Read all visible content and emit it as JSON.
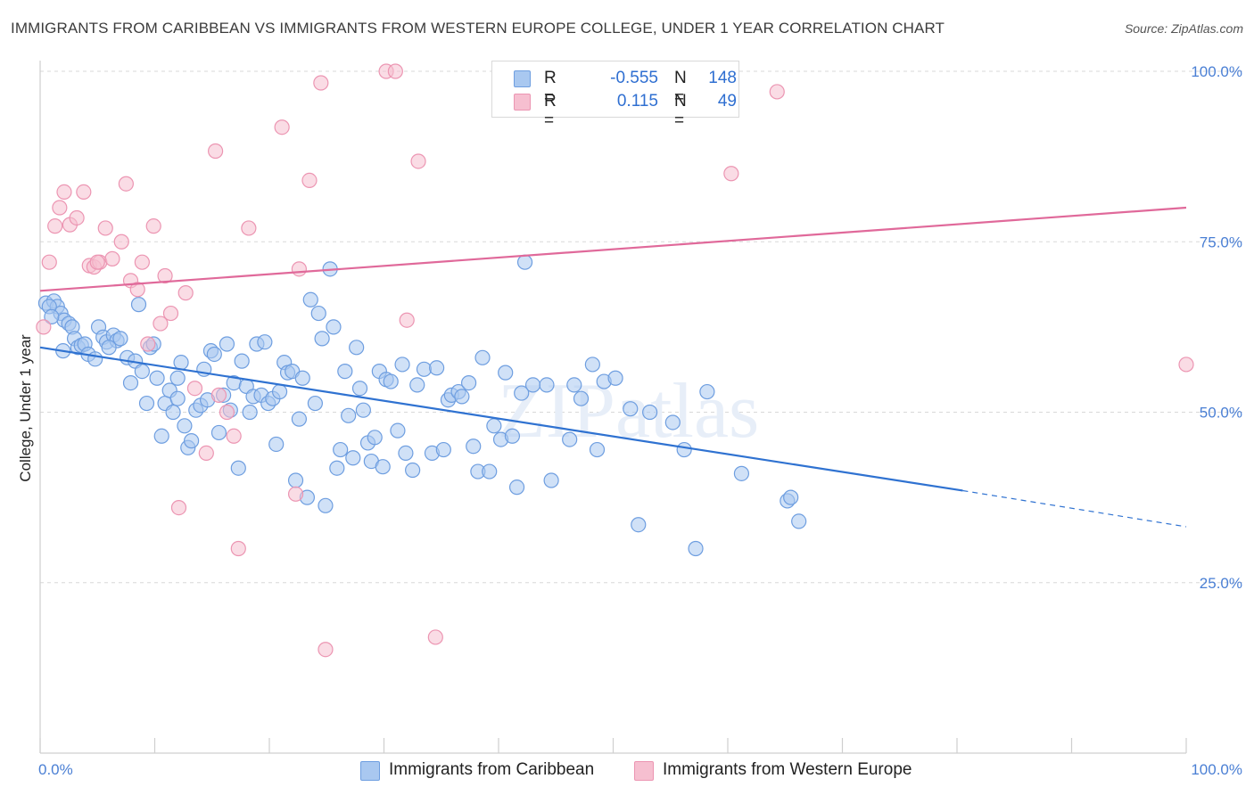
{
  "title": "IMMIGRANTS FROM CARIBBEAN VS IMMIGRANTS FROM WESTERN EUROPE COLLEGE, UNDER 1 YEAR CORRELATION CHART",
  "source": "Source: ZipAtlas.com",
  "watermark": "ZIPatlas",
  "legend": {
    "rows": [
      {
        "r_label": "R =",
        "r_value": "-0.555",
        "n_label": "N =",
        "n_value": "148"
      },
      {
        "r_label": "R =",
        "r_value": "0.115",
        "n_label": "N =",
        "n_value": "49"
      }
    ]
  },
  "bottom_legend": [
    "Immigrants from Caribbean",
    "Immigrants from Western Europe"
  ],
  "colors": {
    "caribbean_fill": "#a9c8f0",
    "caribbean_stroke": "#6e9ee0",
    "caribbean_line": "#2f72d1",
    "westeu_fill": "#f6bfd0",
    "westeu_stroke": "#ec95b2",
    "westeu_line": "#e0699a",
    "grid": "#d8d8d8",
    "tick_text": "#4a7fd4"
  },
  "chart_data": {
    "type": "scatter",
    "title": "IMMIGRANTS FROM CARIBBEAN VS IMMIGRANTS FROM WESTERN EUROPE COLLEGE, UNDER 1 YEAR CORRELATION CHART",
    "xlabel": "",
    "ylabel": "College, Under 1 year",
    "xlim": [
      0,
      100
    ],
    "ylim": [
      0,
      102
    ],
    "x_ticks": [
      "0.0%",
      "100.0%"
    ],
    "y_ticks": [
      {
        "value": 25,
        "label": "25.0%"
      },
      {
        "value": 50,
        "label": "50.0%"
      },
      {
        "value": 75,
        "label": "75.0%"
      },
      {
        "value": 100,
        "label": "100.0%"
      }
    ],
    "grid": "horizontal dashed",
    "series": [
      {
        "name": "Immigrants from Caribbean",
        "trend": {
          "x0": 0,
          "y0": 59.5,
          "x1": 80.5,
          "y1": 38.5,
          "dash_to_x": 100,
          "dash_to_y": 33.2
        },
        "points": [
          [
            0.5,
            66.0
          ],
          [
            1.2,
            66.3
          ],
          [
            1.5,
            65.5
          ],
          [
            1.8,
            64.5
          ],
          [
            2.1,
            63.5
          ],
          [
            2.5,
            63.0
          ],
          [
            2.8,
            62.5
          ],
          [
            3.0,
            60.8
          ],
          [
            3.3,
            59.5
          ],
          [
            3.6,
            59.8
          ],
          [
            3.9,
            60.0
          ],
          [
            4.2,
            58.5
          ],
          [
            4.8,
            57.8
          ],
          [
            5.1,
            62.5
          ],
          [
            5.5,
            61.0
          ],
          [
            5.8,
            60.3
          ],
          [
            6.4,
            61.3
          ],
          [
            6.7,
            60.5
          ],
          [
            7.0,
            60.8
          ],
          [
            7.6,
            58.0
          ],
          [
            7.9,
            54.3
          ],
          [
            8.3,
            57.5
          ],
          [
            8.6,
            65.8
          ],
          [
            8.9,
            56.0
          ],
          [
            9.3,
            51.3
          ],
          [
            9.6,
            59.5
          ],
          [
            9.9,
            60.0
          ],
          [
            10.2,
            55.0
          ],
          [
            10.6,
            46.5
          ],
          [
            10.9,
            51.3
          ],
          [
            11.3,
            53.2
          ],
          [
            11.6,
            50.0
          ],
          [
            12.0,
            55.0
          ],
          [
            12.3,
            57.3
          ],
          [
            12.6,
            48.0
          ],
          [
            12.9,
            44.8
          ],
          [
            13.2,
            45.8
          ],
          [
            13.6,
            50.3
          ],
          [
            14.0,
            51.0
          ],
          [
            14.3,
            56.3
          ],
          [
            14.6,
            51.8
          ],
          [
            14.9,
            59.0
          ],
          [
            15.2,
            58.5
          ],
          [
            15.6,
            47.0
          ],
          [
            16.0,
            52.5
          ],
          [
            16.3,
            60.0
          ],
          [
            16.6,
            50.3
          ],
          [
            16.9,
            54.3
          ],
          [
            17.3,
            41.8
          ],
          [
            17.6,
            57.5
          ],
          [
            18.0,
            53.8
          ],
          [
            18.3,
            50.0
          ],
          [
            18.6,
            52.3
          ],
          [
            18.9,
            60.0
          ],
          [
            19.3,
            52.5
          ],
          [
            19.6,
            60.3
          ],
          [
            19.9,
            51.3
          ],
          [
            20.3,
            52.0
          ],
          [
            20.6,
            45.3
          ],
          [
            20.9,
            53.0
          ],
          [
            21.3,
            57.3
          ],
          [
            21.6,
            55.8
          ],
          [
            22.0,
            56.0
          ],
          [
            22.3,
            40.0
          ],
          [
            22.6,
            49.0
          ],
          [
            22.9,
            55.0
          ],
          [
            23.3,
            37.5
          ],
          [
            23.6,
            66.5
          ],
          [
            24.0,
            51.3
          ],
          [
            24.3,
            64.5
          ],
          [
            24.6,
            60.8
          ],
          [
            24.9,
            36.3
          ],
          [
            25.3,
            71.0
          ],
          [
            25.6,
            62.5
          ],
          [
            25.9,
            41.8
          ],
          [
            26.2,
            44.5
          ],
          [
            26.6,
            56.0
          ],
          [
            26.9,
            49.5
          ],
          [
            27.3,
            43.3
          ],
          [
            27.6,
            59.5
          ],
          [
            27.9,
            53.5
          ],
          [
            28.2,
            50.3
          ],
          [
            28.6,
            45.5
          ],
          [
            28.9,
            42.8
          ],
          [
            29.2,
            46.3
          ],
          [
            29.6,
            56.0
          ],
          [
            29.9,
            42.0
          ],
          [
            30.2,
            54.8
          ],
          [
            30.6,
            54.5
          ],
          [
            31.2,
            47.3
          ],
          [
            31.6,
            57.0
          ],
          [
            31.9,
            44.0
          ],
          [
            32.5,
            41.5
          ],
          [
            32.9,
            54.0
          ],
          [
            33.5,
            56.3
          ],
          [
            34.2,
            44.0
          ],
          [
            34.6,
            56.5
          ],
          [
            35.2,
            44.5
          ],
          [
            35.6,
            51.8
          ],
          [
            35.9,
            52.5
          ],
          [
            36.5,
            53.0
          ],
          [
            36.8,
            52.3
          ],
          [
            37.4,
            54.3
          ],
          [
            37.8,
            45.0
          ],
          [
            38.2,
            41.3
          ],
          [
            38.6,
            58.0
          ],
          [
            39.2,
            41.3
          ],
          [
            39.6,
            48.0
          ],
          [
            40.2,
            46.0
          ],
          [
            40.6,
            55.8
          ],
          [
            41.2,
            46.5
          ],
          [
            41.6,
            39.0
          ],
          [
            42.0,
            52.8
          ],
          [
            42.3,
            72.0
          ],
          [
            43.0,
            54.0
          ],
          [
            44.2,
            54.0
          ],
          [
            44.6,
            40.0
          ],
          [
            46.2,
            46.0
          ],
          [
            46.6,
            54.0
          ],
          [
            47.2,
            52.0
          ],
          [
            48.2,
            57.0
          ],
          [
            48.6,
            44.5
          ],
          [
            49.2,
            54.5
          ],
          [
            50.2,
            55.0
          ],
          [
            51.5,
            50.5
          ],
          [
            52.2,
            33.5
          ],
          [
            53.2,
            50.0
          ],
          [
            55.2,
            48.5
          ],
          [
            56.2,
            44.5
          ],
          [
            57.2,
            30.0
          ],
          [
            58.2,
            53.0
          ],
          [
            61.2,
            41.0
          ],
          [
            65.2,
            37.0
          ],
          [
            65.5,
            37.5
          ],
          [
            66.2,
            34.0
          ],
          [
            0.8,
            65.5
          ],
          [
            1.0,
            64.0
          ],
          [
            2.0,
            59.0
          ],
          [
            6.0,
            59.5
          ],
          [
            12.0,
            52.0
          ]
        ]
      },
      {
        "name": "Immigrants from Western Europe",
        "trend": {
          "x0": 0,
          "y0": 67.8,
          "x1": 100,
          "y1": 80.0
        },
        "points": [
          [
            0.3,
            62.5
          ],
          [
            0.8,
            72.0
          ],
          [
            1.3,
            77.3
          ],
          [
            1.7,
            80.0
          ],
          [
            2.1,
            82.3
          ],
          [
            2.6,
            77.5
          ],
          [
            3.2,
            78.5
          ],
          [
            3.8,
            82.3
          ],
          [
            4.3,
            71.5
          ],
          [
            4.7,
            71.3
          ],
          [
            5.2,
            72.0
          ],
          [
            5.7,
            77.0
          ],
          [
            6.3,
            72.5
          ],
          [
            7.1,
            75.0
          ],
          [
            7.5,
            83.5
          ],
          [
            7.9,
            69.3
          ],
          [
            8.5,
            68.0
          ],
          [
            8.9,
            72.0
          ],
          [
            9.4,
            60.0
          ],
          [
            9.9,
            77.3
          ],
          [
            10.5,
            63.0
          ],
          [
            10.9,
            70.0
          ],
          [
            11.4,
            64.5
          ],
          [
            12.1,
            36.0
          ],
          [
            12.7,
            67.5
          ],
          [
            13.5,
            53.5
          ],
          [
            14.5,
            44.0
          ],
          [
            15.3,
            88.3
          ],
          [
            15.6,
            52.5
          ],
          [
            16.3,
            50.0
          ],
          [
            16.9,
            46.5
          ],
          [
            17.3,
            30.0
          ],
          [
            18.2,
            77.0
          ],
          [
            21.1,
            91.8
          ],
          [
            22.3,
            38.0
          ],
          [
            22.6,
            71.0
          ],
          [
            23.5,
            84.0
          ],
          [
            24.5,
            98.3
          ],
          [
            24.9,
            15.2
          ],
          [
            30.2,
            100.0
          ],
          [
            31.0,
            100.0
          ],
          [
            32.0,
            63.5
          ],
          [
            33.0,
            86.8
          ],
          [
            34.5,
            17.0
          ],
          [
            60.3,
            85.0
          ],
          [
            64.3,
            97.0
          ],
          [
            100.0,
            57.0
          ],
          [
            50.0,
            100.0
          ],
          [
            5.0,
            72.0
          ]
        ]
      }
    ]
  }
}
